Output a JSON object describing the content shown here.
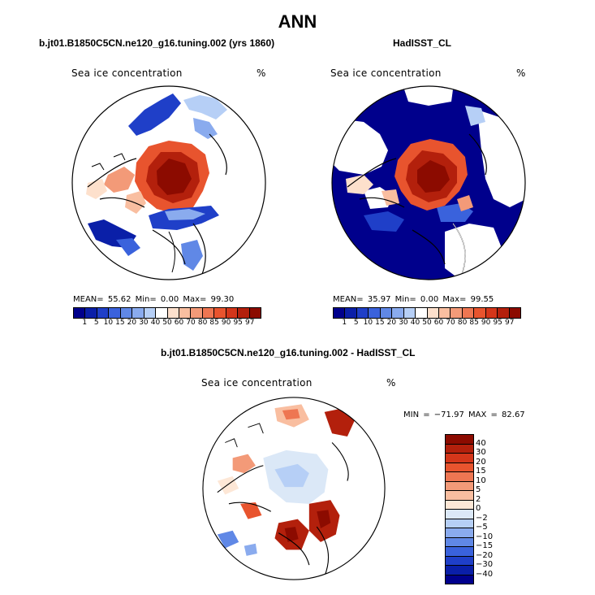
{
  "title": "ANN",
  "panels": {
    "left": {
      "title": "b.jt01.B1850C5CN.ne120_g16.tuning.002 (yrs 1860)",
      "variable": "Sea ice concentration",
      "units": "%",
      "stats": "MEAN=  55.62  Min=   0.00  Max=  99.30"
    },
    "right": {
      "title": "HadISST_CL",
      "variable": "Sea ice concentration",
      "units": "%",
      "stats": "MEAN=  35.97  Min=   0.00  Max=  99.55"
    },
    "diff": {
      "title": "b.jt01.B1850C5CN.ne120_g16.tuning.002 - HadISST_CL",
      "variable": "Sea ice concentration",
      "units": "%",
      "stats": "MIN = −71.97  MAX =  82.67"
    }
  },
  "colorbar_abs": {
    "colors": [
      "#00008c",
      "#0a1fa8",
      "#1f3fc8",
      "#3a62dc",
      "#6088e6",
      "#8aabee",
      "#b6cff6",
      "#ffffff",
      "#fde0cc",
      "#f9bea0",
      "#f39a78",
      "#ee7652",
      "#e8542e",
      "#d4361a",
      "#b3200c",
      "#8c0b00"
    ],
    "labels": [
      "1",
      "5",
      "10",
      "15",
      "20",
      "30",
      "40",
      "50",
      "60",
      "70",
      "80",
      "85",
      "90",
      "95",
      "97"
    ]
  },
  "colorbar_diff": {
    "colors": [
      "#8c0b00",
      "#b3200c",
      "#d4361a",
      "#e8542e",
      "#ee7652",
      "#f39a78",
      "#f9bea0",
      "#fde7d6",
      "#dbe8f7",
      "#b6cff6",
      "#8aabee",
      "#6088e6",
      "#3a62dc",
      "#1f3fc8",
      "#0a1fa8",
      "#00008c"
    ],
    "labels": [
      "40",
      "30",
      "20",
      "15",
      "10",
      "5",
      "2",
      "0",
      "−2",
      "−5",
      "−10",
      "−15",
      "−20",
      "−30",
      "−40"
    ]
  },
  "chart_data": {
    "type": "map",
    "projection": "north polar stereographic",
    "season": "ANN",
    "maps": [
      {
        "name": "b.jt01.B1850C5CN.ne120_g16.tuning.002 (yrs 1860)",
        "mean": 55.62,
        "min": 0.0,
        "max": 99.3
      },
      {
        "name": "HadISST_CL",
        "mean": 35.97,
        "min": 0.0,
        "max": 99.55
      },
      {
        "name": "b.jt01.B1850C5CN.ne120_g16.tuning.002 - HadISST_CL",
        "min": -71.97,
        "max": 82.67
      }
    ],
    "colorbar_levels_abs": [
      1,
      5,
      10,
      15,
      20,
      30,
      40,
      50,
      60,
      70,
      80,
      85,
      90,
      95,
      97
    ],
    "colorbar_levels_diff": [
      40,
      30,
      20,
      15,
      10,
      5,
      2,
      0,
      -2,
      -5,
      -10,
      -15,
      -20,
      -30,
      -40
    ]
  }
}
